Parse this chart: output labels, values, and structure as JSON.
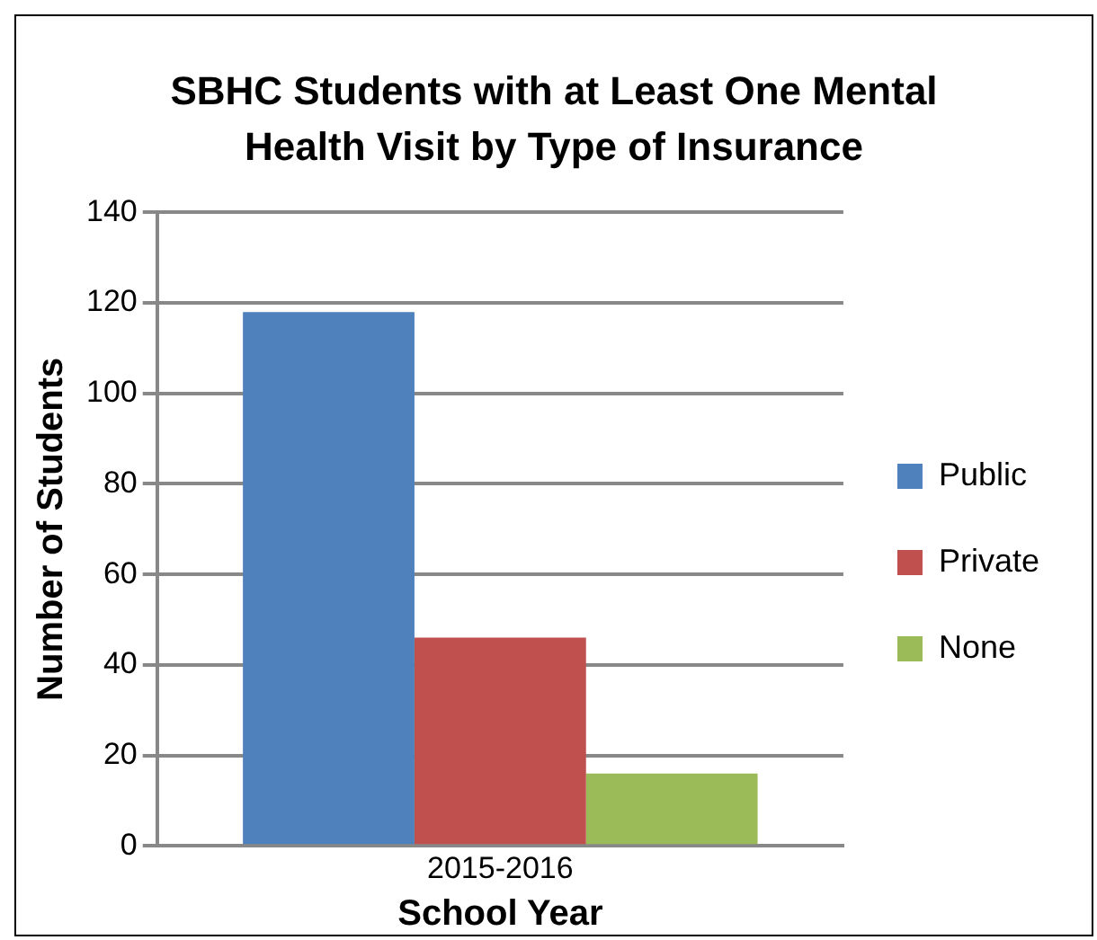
{
  "chart_data": {
    "type": "bar",
    "title": "SBHC Students with at Least One Mental Health Visit by Type of Insurance",
    "xlabel": "School Year",
    "ylabel": "Number of Students",
    "categories": [
      "2015-2016"
    ],
    "series": [
      {
        "name": "Public",
        "color": "#4f81bd",
        "values": [
          118
        ]
      },
      {
        "name": "Private",
        "color": "#c0504d",
        "values": [
          46
        ]
      },
      {
        "name": "None",
        "color": "#9bbb59",
        "values": [
          16
        ]
      }
    ],
    "ylim": [
      0,
      140
    ],
    "yticks": [
      0,
      20,
      40,
      60,
      80,
      100,
      120,
      140
    ],
    "grid": "y",
    "legend": "right"
  }
}
